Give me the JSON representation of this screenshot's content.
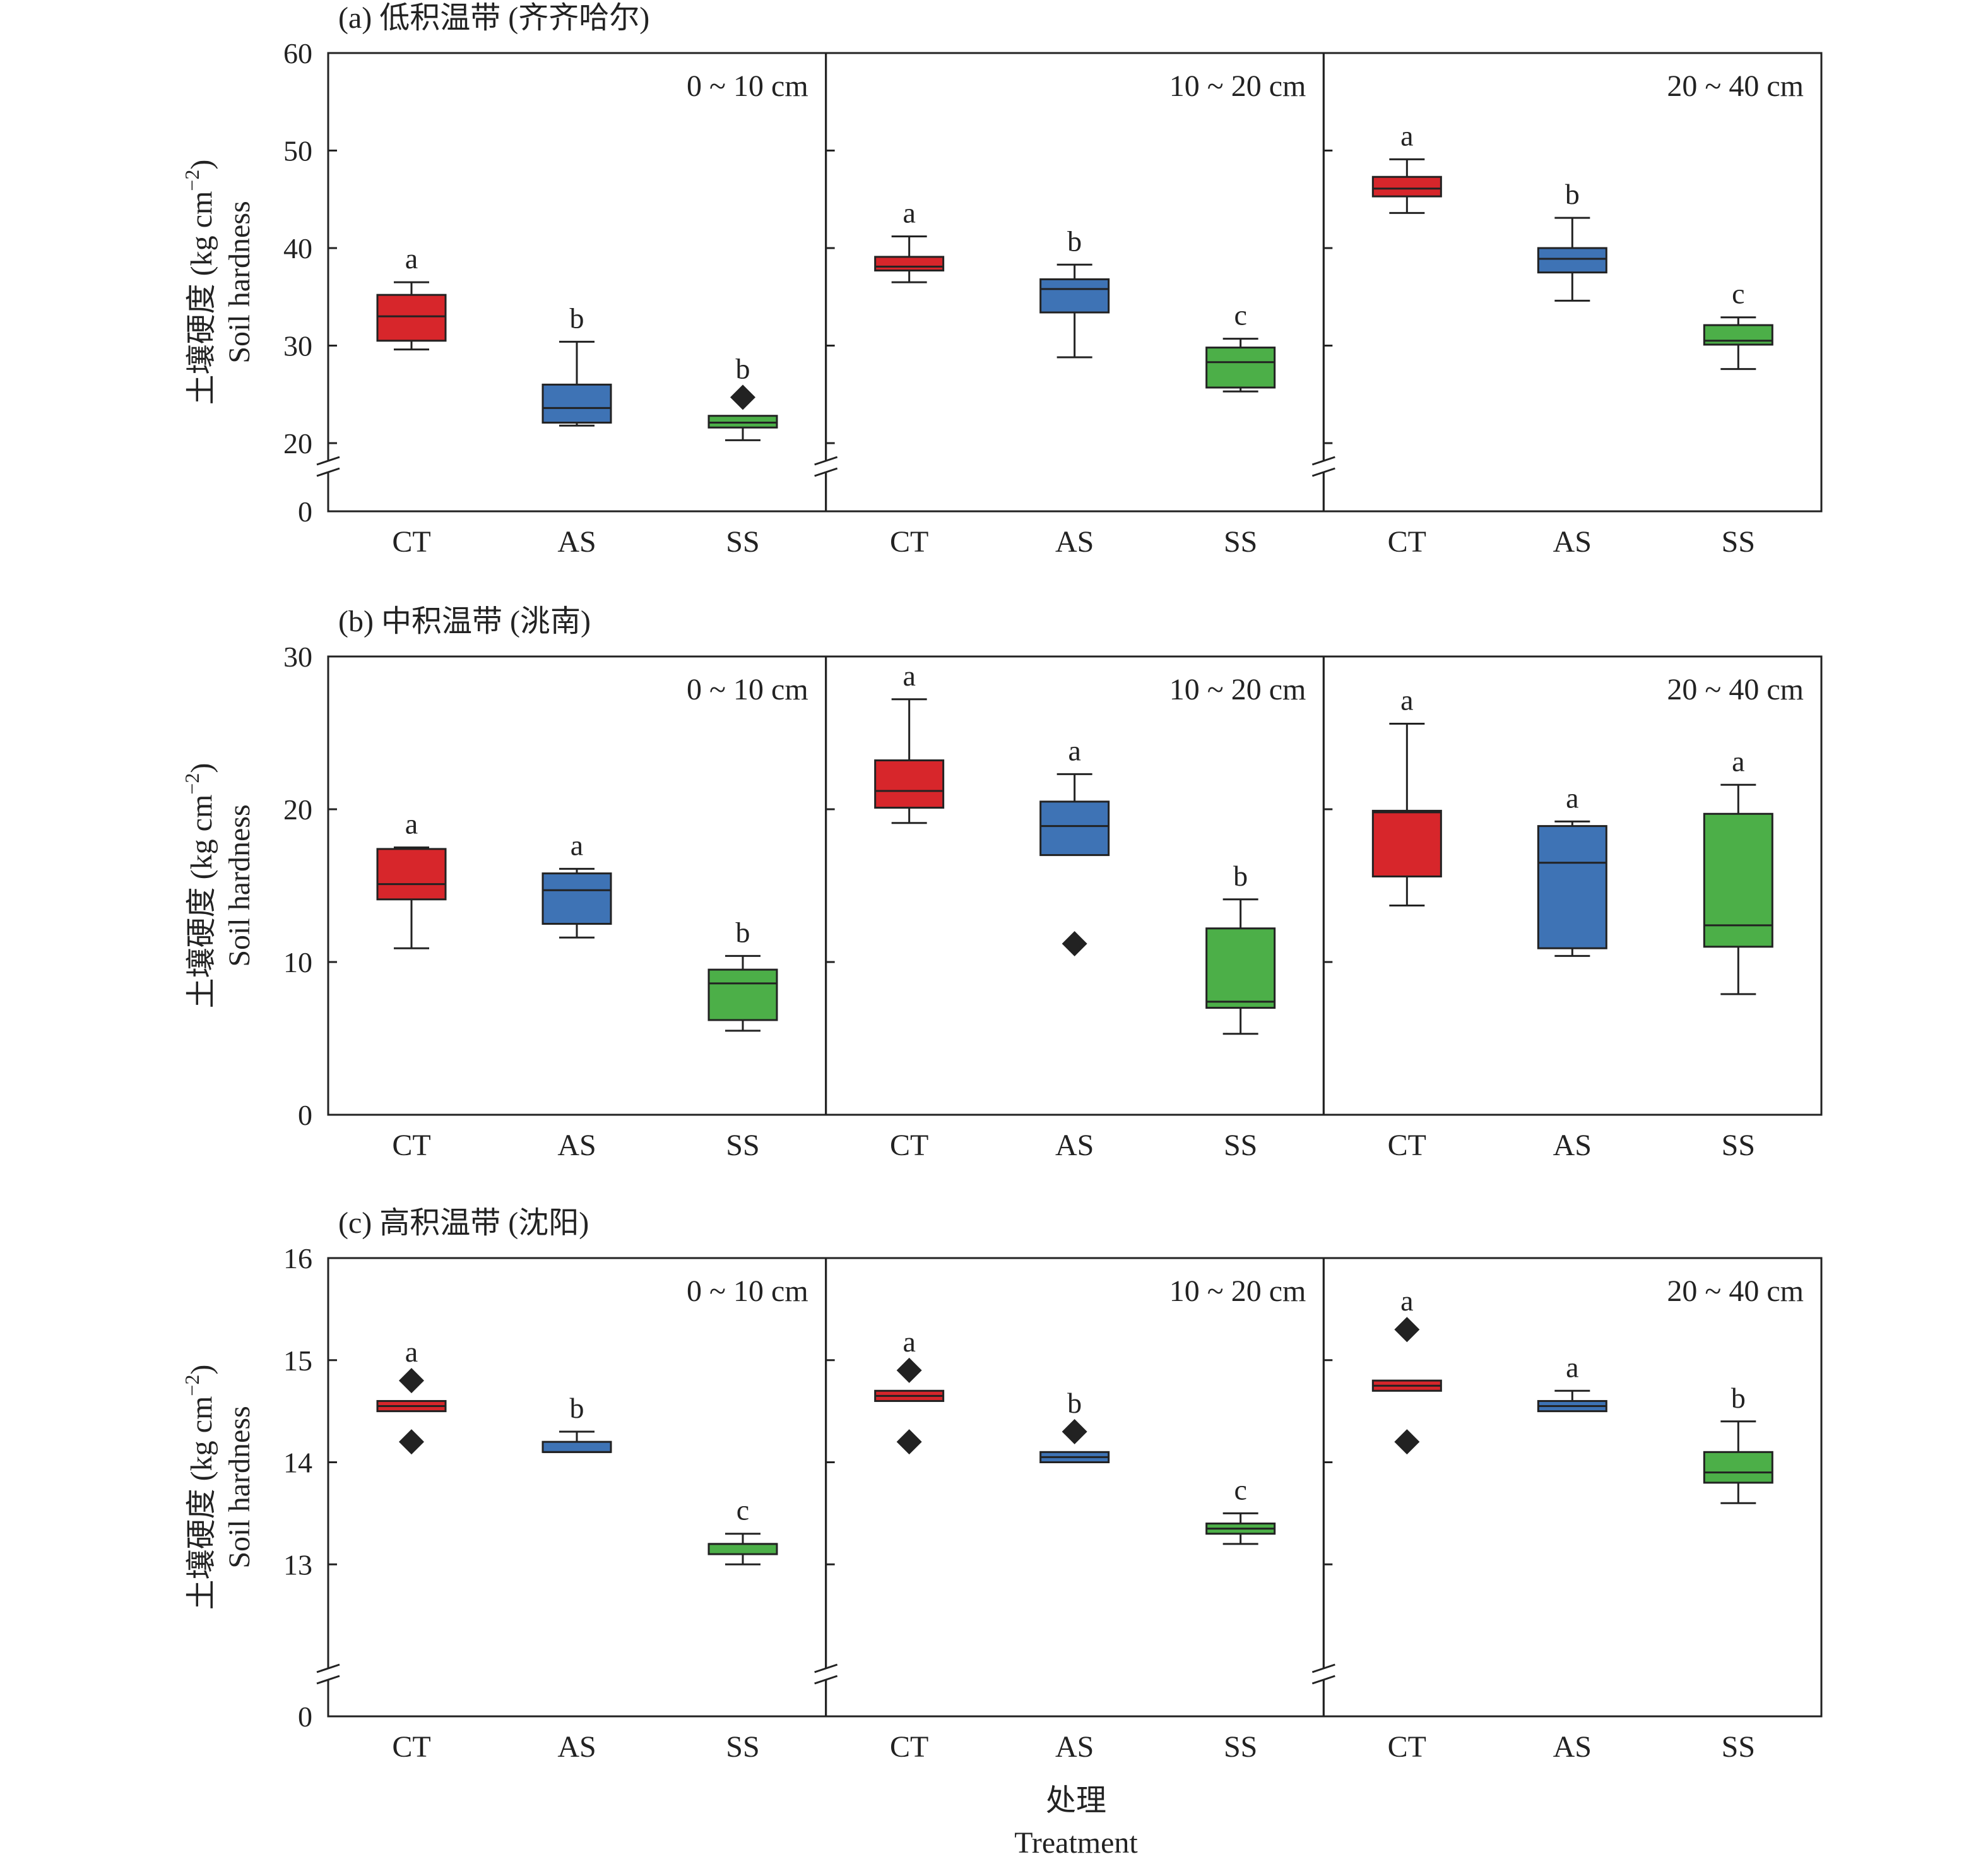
{
  "figure": {
    "xlabel_cn": "处理",
    "xlabel_en": "Treatment",
    "ylabel_cn": "土壤硬度 (kg cm",
    "ylabel_sup": "−2",
    "ylabel_close": ")",
    "ylabel_en": "Soil hardness"
  },
  "colors": {
    "CT": "#d7262b",
    "AS": "#3e73b5",
    "SS": "#4caf48"
  },
  "chart_data": [
    {
      "type": "box",
      "title": "(a) 低积温带 (齐齐哈尔)",
      "ylim": [
        0,
        60
      ],
      "axis_break": true,
      "break_shown_range": [
        20,
        60
      ],
      "yticks": [
        60,
        50,
        40,
        30,
        20,
        0
      ],
      "categories": [
        "CT",
        "AS",
        "SS"
      ],
      "grid": false,
      "depths": [
        {
          "label": "0 ~ 10 cm",
          "boxes": [
            {
              "cat": "CT",
              "min": 29.6,
              "q1": 30.5,
              "median": 33.0,
              "q3": 35.2,
              "max": 36.5,
              "outliers": [],
              "letter": "a"
            },
            {
              "cat": "AS",
              "min": 21.8,
              "q1": 22.1,
              "median": 23.6,
              "q3": 26.0,
              "max": 30.4,
              "outliers": [],
              "letter": "b"
            },
            {
              "cat": "SS",
              "min": 20.3,
              "q1": 21.6,
              "median": 22.1,
              "q3": 22.8,
              "max": 22.8,
              "outliers": [
                24.7
              ],
              "letter": "b"
            }
          ]
        },
        {
          "label": "10 ~ 20 cm",
          "boxes": [
            {
              "cat": "CT",
              "min": 36.5,
              "q1": 37.7,
              "median": 38.1,
              "q3": 39.1,
              "max": 41.2,
              "outliers": [],
              "letter": "a"
            },
            {
              "cat": "AS",
              "min": 28.8,
              "q1": 33.4,
              "median": 35.8,
              "q3": 36.8,
              "max": 38.3,
              "outliers": [],
              "letter": "b"
            },
            {
              "cat": "SS",
              "min": 25.3,
              "q1": 25.7,
              "median": 28.3,
              "q3": 29.8,
              "max": 30.7,
              "outliers": [],
              "letter": "c"
            }
          ]
        },
        {
          "label": "20 ~ 40 cm",
          "boxes": [
            {
              "cat": "CT",
              "min": 43.6,
              "q1": 45.3,
              "median": 46.1,
              "q3": 47.3,
              "max": 49.1,
              "outliers": [],
              "letter": "a"
            },
            {
              "cat": "AS",
              "min": 34.6,
              "q1": 37.5,
              "median": 38.9,
              "q3": 40.0,
              "max": 43.1,
              "outliers": [],
              "letter": "b"
            },
            {
              "cat": "SS",
              "min": 27.6,
              "q1": 30.1,
              "median": 30.5,
              "q3": 32.1,
              "max": 32.9,
              "outliers": [],
              "letter": "c"
            }
          ]
        }
      ]
    },
    {
      "type": "box",
      "title": "(b) 中积温带 (洮南)",
      "ylim": [
        0,
        30
      ],
      "axis_break": false,
      "yticks": [
        30,
        20,
        10,
        0
      ],
      "categories": [
        "CT",
        "AS",
        "SS"
      ],
      "grid": false,
      "depths": [
        {
          "label": "0 ~ 10 cm",
          "boxes": [
            {
              "cat": "CT",
              "min": 10.9,
              "q1": 14.1,
              "median": 15.1,
              "q3": 17.4,
              "max": 17.5,
              "outliers": [],
              "letter": "a"
            },
            {
              "cat": "AS",
              "min": 11.6,
              "q1": 12.5,
              "median": 14.7,
              "q3": 15.8,
              "max": 16.1,
              "outliers": [],
              "letter": "a"
            },
            {
              "cat": "SS",
              "min": 5.5,
              "q1": 6.2,
              "median": 8.6,
              "q3": 9.5,
              "max": 10.4,
              "outliers": [],
              "letter": "b"
            }
          ]
        },
        {
          "label": "10 ~ 20 cm",
          "boxes": [
            {
              "cat": "CT",
              "min": 19.1,
              "q1": 20.1,
              "median": 21.2,
              "q3": 23.2,
              "max": 27.2,
              "outliers": [],
              "letter": "a"
            },
            {
              "cat": "AS",
              "min": 17.0,
              "q1": 17.0,
              "median": 18.9,
              "q3": 20.5,
              "max": 22.3,
              "outliers": [
                11.2
              ],
              "letter": "a"
            },
            {
              "cat": "SS",
              "min": 5.3,
              "q1": 7.0,
              "median": 7.4,
              "q3": 12.2,
              "max": 14.1,
              "outliers": [],
              "letter": "b"
            }
          ]
        },
        {
          "label": "20 ~ 40 cm",
          "boxes": [
            {
              "cat": "CT",
              "min": 13.7,
              "q1": 15.6,
              "median": 19.8,
              "q3": 19.9,
              "max": 25.6,
              "outliers": [],
              "letter": "a"
            },
            {
              "cat": "AS",
              "min": 10.4,
              "q1": 10.9,
              "median": 16.5,
              "q3": 18.9,
              "max": 19.2,
              "outliers": [],
              "letter": "a"
            },
            {
              "cat": "SS",
              "min": 7.9,
              "q1": 11.0,
              "median": 12.4,
              "q3": 19.7,
              "max": 21.6,
              "outliers": [],
              "letter": "a"
            }
          ]
        }
      ]
    },
    {
      "type": "box",
      "title": "(c) 高积温带 (沈阳)",
      "ylim": [
        0,
        16
      ],
      "axis_break": true,
      "break_shown_range": [
        12,
        16
      ],
      "yticks": [
        16,
        15,
        14,
        13,
        0
      ],
      "categories": [
        "CT",
        "AS",
        "SS"
      ],
      "grid": false,
      "depths": [
        {
          "label": "0 ~ 10 cm",
          "boxes": [
            {
              "cat": "CT",
              "min": 14.5,
              "q1": 14.5,
              "median": 14.55,
              "q3": 14.6,
              "max": 14.6,
              "outliers": [
                14.8,
                14.2
              ],
              "letter": "a"
            },
            {
              "cat": "AS",
              "min": 14.1,
              "q1": 14.1,
              "median": 14.1,
              "q3": 14.2,
              "max": 14.3,
              "outliers": [],
              "letter": "b"
            },
            {
              "cat": "SS",
              "min": 13.0,
              "q1": 13.1,
              "median": 13.2,
              "q3": 13.2,
              "max": 13.3,
              "outliers": [],
              "letter": "c"
            }
          ]
        },
        {
          "label": "10 ~ 20 cm",
          "boxes": [
            {
              "cat": "CT",
              "min": 14.6,
              "q1": 14.6,
              "median": 14.65,
              "q3": 14.7,
              "max": 14.7,
              "outliers": [
                14.9,
                14.2
              ],
              "letter": "a"
            },
            {
              "cat": "AS",
              "min": 14.0,
              "q1": 14.0,
              "median": 14.05,
              "q3": 14.1,
              "max": 14.1,
              "outliers": [
                14.3
              ],
              "letter": "b"
            },
            {
              "cat": "SS",
              "min": 13.2,
              "q1": 13.3,
              "median": 13.35,
              "q3": 13.4,
              "max": 13.5,
              "outliers": [],
              "letter": "c"
            }
          ]
        },
        {
          "label": "20 ~ 40 cm",
          "boxes": [
            {
              "cat": "CT",
              "min": 14.7,
              "q1": 14.7,
              "median": 14.75,
              "q3": 14.8,
              "max": 14.8,
              "outliers": [
                15.3,
                14.2
              ],
              "letter": "a"
            },
            {
              "cat": "AS",
              "min": 14.5,
              "q1": 14.5,
              "median": 14.55,
              "q3": 14.6,
              "max": 14.7,
              "outliers": [],
              "letter": "a"
            },
            {
              "cat": "SS",
              "min": 13.6,
              "q1": 13.8,
              "median": 13.9,
              "q3": 14.1,
              "max": 14.4,
              "outliers": [],
              "letter": "b"
            }
          ]
        }
      ]
    }
  ]
}
